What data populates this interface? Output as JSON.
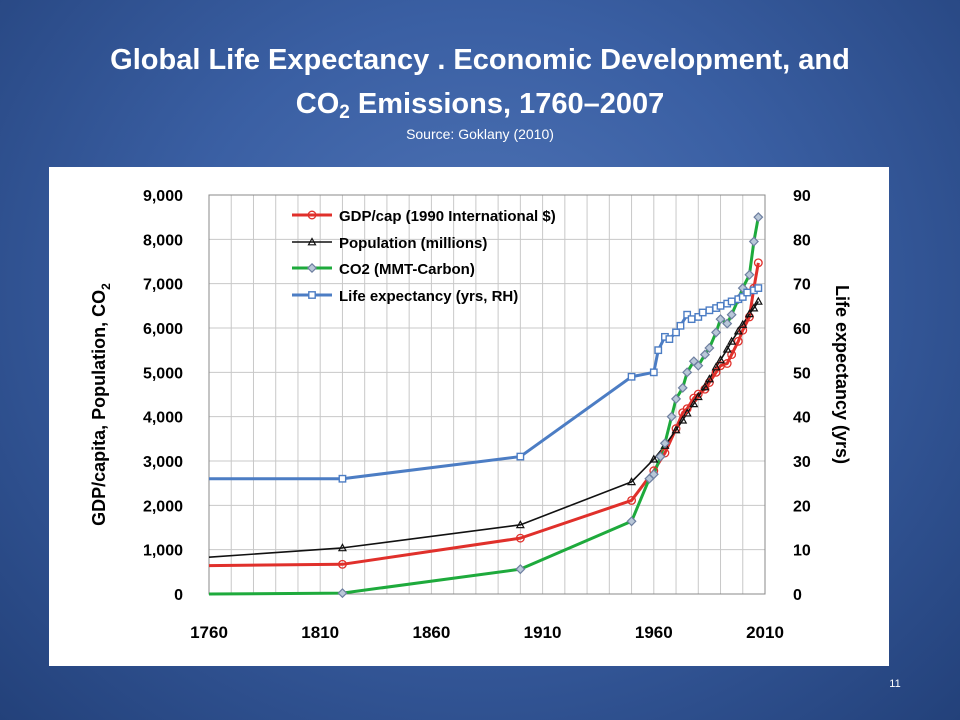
{
  "slide": {
    "title_line1": "Global Life Expectancy . Economic Development, and",
    "title_line2_pre": "CO",
    "title_line2_sub": "2",
    "title_line2_post": " Emissions, 1760–2007",
    "source": "Source: Goklany (2010)",
    "slide_number": "11"
  },
  "chart_data": {
    "type": "line",
    "title": "",
    "xlabel": "",
    "ylabel": "GDP/capita,  Population,  CO2",
    "ylabel_pre": "GDP/capita,  Population,  CO",
    "ylabel_sub": "2",
    "y2label": "Life expectancy (yrs)",
    "xlim": [
      1760,
      2010
    ],
    "ylim": [
      0,
      9000
    ],
    "y2lim": [
      0,
      90
    ],
    "x_ticks": [
      1760,
      1810,
      1860,
      1910,
      1960,
      2010
    ],
    "x_tick_labels": [
      "1760",
      "1810",
      "1860",
      "1910",
      "1960",
      "2010"
    ],
    "y_tick_labels": [
      "0",
      "1,000",
      "2,000",
      "3,000",
      "4,000",
      "5,000",
      "6,000",
      "7,000",
      "8,000",
      "9,000"
    ],
    "y2_tick_labels": [
      "0",
      "10",
      "20",
      "30",
      "40",
      "50",
      "60",
      "70",
      "80",
      "90"
    ],
    "grid": true,
    "legend_position": "top-left",
    "series": [
      {
        "name": "GDP/cap (1990 International $)",
        "axis": "left",
        "color": "#e0302b",
        "marker": "circle",
        "start": [
          1760,
          640
        ],
        "x": [
          1820,
          1900,
          1950,
          1960,
          1965,
          1970,
          1973,
          1975,
          1978,
          1980,
          1983,
          1985,
          1988,
          1990,
          1993,
          1995,
          1998,
          2000,
          2003,
          2005,
          2007
        ],
        "y": [
          670,
          1260,
          2110,
          2780,
          3180,
          3730,
          4090,
          4180,
          4420,
          4510,
          4620,
          4770,
          5000,
          5150,
          5200,
          5400,
          5700,
          5950,
          6250,
          6900,
          7470
        ]
      },
      {
        "name": "Population (millions)",
        "axis": "left",
        "color": "#111111",
        "marker": "triangle",
        "start": [
          1760,
          830
        ],
        "x": [
          1820,
          1900,
          1950,
          1960,
          1965,
          1970,
          1973,
          1975,
          1978,
          1980,
          1983,
          1985,
          1988,
          1990,
          1993,
          1995,
          1998,
          2000,
          2003,
          2005,
          2007
        ],
        "y": [
          1040,
          1560,
          2530,
          3040,
          3350,
          3700,
          3920,
          4080,
          4290,
          4450,
          4670,
          4850,
          5120,
          5280,
          5520,
          5700,
          5930,
          6080,
          6320,
          6450,
          6600
        ]
      },
      {
        "name": "CO2 (MMT-Carbon)",
        "axis": "left",
        "color": "#1eaa3c",
        "marker": "diamond",
        "start": [
          1760,
          0
        ],
        "x": [
          1820,
          1900,
          1950,
          1958,
          1960,
          1963,
          1965,
          1968,
          1970,
          1973,
          1975,
          1978,
          1980,
          1983,
          1985,
          1988,
          1990,
          1993,
          1995,
          1998,
          2000,
          2003,
          2005,
          2007
        ],
        "y": [
          20,
          560,
          1640,
          2600,
          2700,
          3100,
          3400,
          4000,
          4400,
          4650,
          5000,
          5250,
          5150,
          5400,
          5550,
          5900,
          6200,
          6100,
          6300,
          6650,
          6900,
          7200,
          7950,
          8500
        ]
      },
      {
        "name": "Life expectancy (yrs, RH)",
        "axis": "right",
        "color": "#4c7dc4",
        "marker": "square",
        "start": [
          1760,
          26
        ],
        "x": [
          1820,
          1900,
          1950,
          1960,
          1962,
          1965,
          1967,
          1970,
          1972,
          1975,
          1977,
          1980,
          1982,
          1985,
          1988,
          1990,
          1993,
          1995,
          1998,
          2000,
          2002,
          2005,
          2007
        ],
        "y": [
          26,
          31,
          49,
          50,
          55,
          58,
          57.5,
          59,
          60.5,
          63,
          62,
          62.5,
          63.5,
          64,
          64.5,
          65,
          65.5,
          66,
          66.5,
          67,
          68,
          68.5,
          69
        ]
      }
    ]
  }
}
